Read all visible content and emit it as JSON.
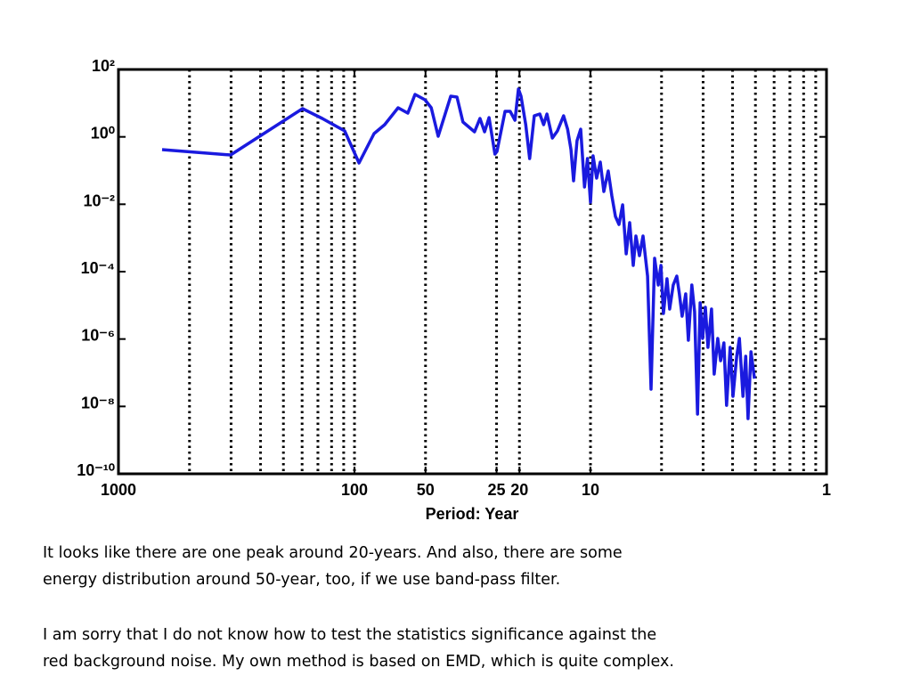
{
  "chart_data": {
    "type": "line",
    "xlabel": "Period: Year",
    "xscale": "log",
    "yscale": "log",
    "xlim": [
      1000,
      1
    ],
    "ylim": [
      1e-10,
      100
    ],
    "xticks": [
      1000,
      100,
      50,
      25,
      20,
      10,
      1
    ],
    "yticks": [
      {
        "value": 1e-10,
        "label": "10⁻¹⁰"
      },
      {
        "value": 1e-08,
        "label": "10⁻⁸"
      },
      {
        "value": 1e-06,
        "label": "10⁻⁶"
      },
      {
        "value": 0.0001,
        "label": "10⁻⁴"
      },
      {
        "value": 0.01,
        "label": "10⁻²"
      },
      {
        "value": 1,
        "label": "10⁰"
      },
      {
        "value": 100,
        "label": "10²"
      }
    ],
    "xgrid": [
      500,
      333.33,
      250,
      200,
      166.67,
      142.86,
      125,
      111.11,
      100,
      50,
      25,
      20,
      10,
      5,
      3.333,
      2.5,
      2,
      1.667,
      1.429,
      1.25,
      1.111
    ],
    "x": [
      653,
      335,
      166,
      137,
      110,
      95.7,
      82.6,
      74.5,
      65.3,
      59.4,
      55.4,
      50.3,
      47.3,
      44.2,
      39.1,
      36.8,
      34.7,
      31.0,
      29.4,
      28.1,
      26.9,
      25.4,
      24.9,
      23.0,
      21.9,
      20.9,
      20.2,
      19.7,
      18.8,
      18.1,
      17.3,
      16.4,
      15.8,
      15.3,
      14.5,
      13.8,
      13.0,
      12.5,
      12.1,
      11.8,
      11.4,
      11.0,
      10.6,
      10.3,
      10.0,
      9.75,
      9.42,
      9.09,
      8.78,
      8.41,
      8.12,
      7.84,
      7.57,
      7.31,
      7.06,
      6.82,
      6.59,
      6.42,
      6.2,
      5.99,
      5.73,
      5.54,
      5.35,
      5.16,
      5.03,
      4.91,
      4.74,
      4.62,
      4.46,
      4.31,
      4.2,
      4.09,
      3.95,
      3.85,
      3.72,
      3.62,
      3.52,
      3.43,
      3.35,
      3.26,
      3.18,
      3.07,
      2.99,
      2.89,
      2.81,
      2.72,
      2.65,
      2.56,
      2.49,
      2.4,
      2.34,
      2.26,
      2.2,
      2.15,
      2.09,
      2.02
    ],
    "series": [
      {
        "color": "#1a1adf",
        "values": [
          0.418,
          0.29,
          6.87,
          3.52,
          1.5,
          0.168,
          1.25,
          2.3,
          7.3,
          5.07,
          18.2,
          12.6,
          7.3,
          1.04,
          16.1,
          15.2,
          2.75,
          1.41,
          3.52,
          1.41,
          3.74,
          0.308,
          0.37,
          5.73,
          5.73,
          3.11,
          26.2,
          16.1,
          2.3,
          0.228,
          4.22,
          4.76,
          2.3,
          4.76,
          0.922,
          1.5,
          4.22,
          1.69,
          0.418,
          0.0497,
          0.767,
          1.69,
          0.0324,
          0.228,
          0.0115,
          0.273,
          0.0596,
          0.178,
          0.0239,
          0.0969,
          0.0176,
          0.00435,
          0.00251,
          0.0096,
          0.000337,
          0.00284,
          0.000153,
          0.00114,
          0.000299,
          0.00114,
          7.36e-05,
          3.24e-08,
          0.000249,
          4.01e-05,
          0.000153,
          5.71e-06,
          6.14e-05,
          7.74e-06,
          4.01e-05,
          7.36e-05,
          2.18e-05,
          4.76e-06,
          2.18e-05,
          9.2e-07,
          4.01e-05,
          6.46e-06,
          5.9e-09,
          1.19e-05,
          1.04e-06,
          8.75e-06,
          5.66e-07,
          7.74e-06,
          9.1e-08,
          1.04e-06,
          2.27e-07,
          7.67e-07,
          1.08e-08,
          5.66e-07,
          1.99e-08,
          3.08e-07,
          1.04e-06,
          1.99e-08,
          3.08e-07,
          4.35e-09,
          4.17e-07,
          6.71e-08
        ]
      }
    ]
  },
  "text": {
    "paragraphs": [
      [
        "It looks like there are one peak around 20-years. And also, there are some",
        "energy distribution around 50-year, too, if we use band-pass filter."
      ],
      [
        "I am sorry that I do not know how to test the statistics significance against the",
        "red background noise. My own method is based on EMD, which is quite complex."
      ]
    ]
  }
}
